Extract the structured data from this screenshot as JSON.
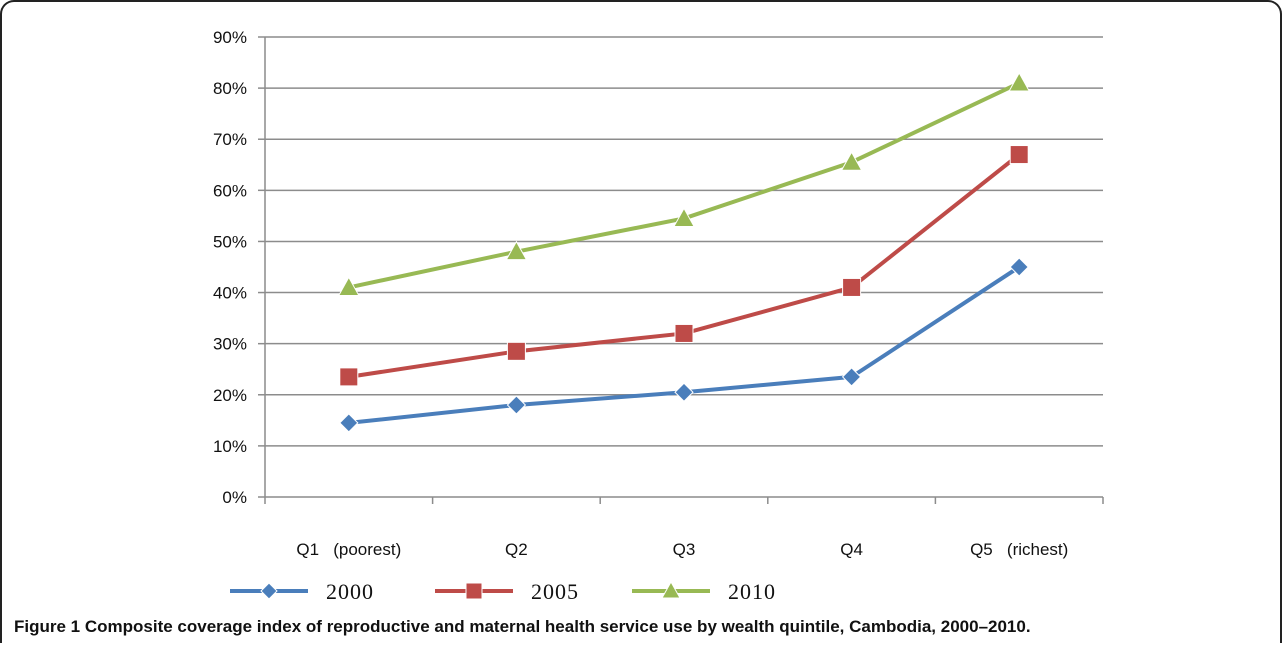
{
  "chart_data": {
    "type": "line",
    "categories": [
      "Q1   (poorest)",
      "Q2",
      "Q3",
      "Q4",
      "Q5   (richest)"
    ],
    "y_ticks": [
      "0%",
      "10%",
      "20%",
      "30%",
      "40%",
      "50%",
      "60%",
      "70%",
      "80%",
      "90%"
    ],
    "ylim": [
      0,
      90
    ],
    "grid": "horizontal",
    "legend_position": "bottom",
    "series": [
      {
        "name": "2000",
        "color": "#4a7ebb",
        "marker": "diamond",
        "values": [
          14.5,
          18,
          20.5,
          23.5,
          45
        ]
      },
      {
        "name": "2005",
        "color": "#be4b48",
        "marker": "square",
        "values": [
          23.5,
          28.5,
          32,
          41,
          67
        ]
      },
      {
        "name": "2010",
        "color": "#98b954",
        "marker": "triangle",
        "values": [
          41,
          48,
          54.5,
          65.5,
          81
        ]
      }
    ]
  },
  "figure": {
    "label": "Figure 1",
    "caption": "Composite coverage index of reproductive and maternal health service use by wealth quintile, Cambodia, 2000–2010."
  }
}
